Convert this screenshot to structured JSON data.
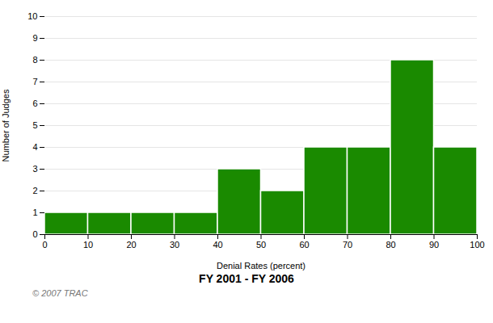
{
  "chart_data": {
    "type": "histogram",
    "xlabel": "Denial Rates (percent)",
    "ylabel": "Number of Judges",
    "subtitle": "FY 2001 - FY 2006",
    "annotations": [
      "© 2007 TRAC"
    ],
    "bins": [
      0,
      10,
      20,
      30,
      40,
      50,
      60,
      70,
      80,
      90,
      100
    ],
    "values": [
      1,
      1,
      1,
      1,
      3,
      2,
      4,
      4,
      8,
      4
    ],
    "color": "#1a8a00",
    "xlim": [
      0,
      100
    ],
    "ylim": [
      0,
      10
    ],
    "xticks": [
      0,
      10,
      20,
      30,
      40,
      50,
      60,
      70,
      80,
      90,
      100
    ],
    "yticks": [
      0,
      1,
      2,
      3,
      4,
      5,
      6,
      7,
      8,
      9,
      10
    ],
    "grid": "y"
  }
}
